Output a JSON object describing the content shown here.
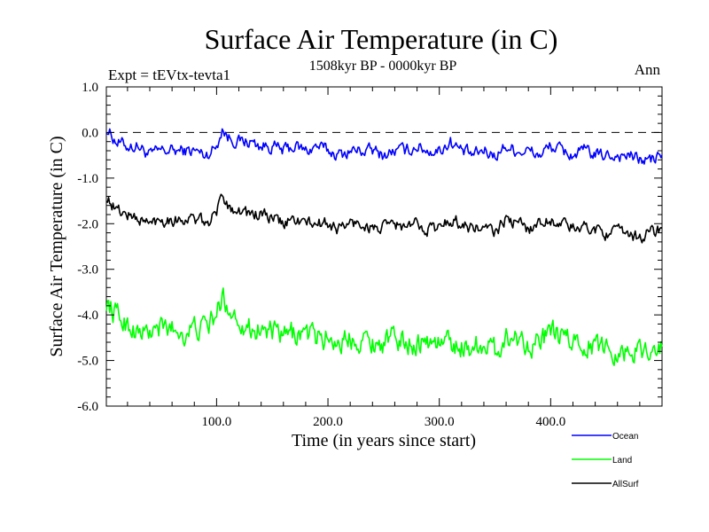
{
  "chart_data": {
    "type": "line",
    "title": "Surface Air Temperature (in C)",
    "subtitle": "1508kyr BP - 0000kyr BP",
    "expt_label": "Expt = tEVtx-tevta1",
    "season_label": "Ann",
    "xlabel": "Time (in years since start)",
    "ylabel": "Surface Air Temperature (in C)",
    "xlim": [
      1,
      500
    ],
    "ylim": [
      -6.0,
      1.0
    ],
    "x_ticks": [
      100,
      200,
      300,
      400
    ],
    "x_tick_labels": [
      "100.0",
      "200.0",
      "300.0",
      "400.0"
    ],
    "y_ticks": [
      1.0,
      0.0,
      -1.0,
      -2.0,
      -3.0,
      -4.0,
      -5.0,
      -6.0
    ],
    "y_tick_labels": [
      "1.0",
      "0.0",
      "-1.0",
      "-2.0",
      "-3.0",
      "-4.0",
      "-5.0",
      "-6.0"
    ],
    "reference_line": 0.0,
    "legend_position": "bottom-right, outside plot",
    "series": [
      {
        "name": "Ocean",
        "color": "#0000ff",
        "x": [
          1,
          10,
          20,
          30,
          40,
          50,
          60,
          70,
          80,
          90,
          100,
          105,
          110,
          120,
          130,
          140,
          150,
          160,
          170,
          180,
          190,
          200,
          210,
          220,
          230,
          240,
          250,
          260,
          270,
          280,
          290,
          300,
          310,
          320,
          330,
          340,
          350,
          360,
          370,
          380,
          390,
          400,
          410,
          420,
          430,
          440,
          450,
          460,
          470,
          480,
          490,
          500
        ],
        "values": [
          0.1,
          -0.2,
          -0.3,
          -0.3,
          -0.5,
          -0.4,
          -0.4,
          -0.4,
          -0.4,
          -0.5,
          -0.3,
          0.1,
          -0.1,
          -0.2,
          -0.2,
          -0.3,
          -0.3,
          -0.4,
          -0.3,
          -0.4,
          -0.3,
          -0.4,
          -0.5,
          -0.4,
          -0.4,
          -0.4,
          -0.5,
          -0.4,
          -0.4,
          -0.3,
          -0.4,
          -0.4,
          -0.2,
          -0.4,
          -0.5,
          -0.4,
          -0.5,
          -0.3,
          -0.4,
          -0.4,
          -0.5,
          -0.3,
          -0.4,
          -0.5,
          -0.4,
          -0.5,
          -0.5,
          -0.5,
          -0.5,
          -0.6,
          -0.6,
          -0.5
        ]
      },
      {
        "name": "Land",
        "color": "#00ff00",
        "x": [
          1,
          10,
          20,
          30,
          40,
          50,
          60,
          70,
          80,
          90,
          100,
          105,
          110,
          120,
          130,
          140,
          150,
          160,
          170,
          180,
          190,
          200,
          210,
          220,
          230,
          240,
          250,
          260,
          270,
          280,
          290,
          300,
          310,
          320,
          330,
          340,
          350,
          360,
          370,
          380,
          390,
          400,
          410,
          420,
          430,
          440,
          450,
          460,
          470,
          480,
          490,
          500
        ],
        "values": [
          -3.7,
          -4.0,
          -4.2,
          -4.4,
          -4.4,
          -4.3,
          -4.3,
          -4.4,
          -4.3,
          -4.3,
          -4.0,
          -3.6,
          -3.8,
          -4.1,
          -4.3,
          -4.3,
          -4.4,
          -4.5,
          -4.4,
          -4.4,
          -4.5,
          -4.5,
          -4.6,
          -4.5,
          -4.5,
          -4.6,
          -4.6,
          -4.5,
          -4.6,
          -4.6,
          -4.6,
          -4.6,
          -4.6,
          -4.7,
          -4.7,
          -4.6,
          -4.8,
          -4.5,
          -4.5,
          -4.6,
          -4.6,
          -4.4,
          -4.5,
          -4.6,
          -4.6,
          -4.7,
          -4.7,
          -4.8,
          -4.8,
          -4.8,
          -4.7,
          -4.7
        ]
      },
      {
        "name": "AllSurf",
        "color": "#000000",
        "x": [
          1,
          10,
          20,
          30,
          40,
          50,
          60,
          70,
          80,
          90,
          100,
          105,
          110,
          120,
          130,
          140,
          150,
          160,
          170,
          180,
          190,
          200,
          210,
          220,
          230,
          240,
          250,
          260,
          270,
          280,
          290,
          300,
          310,
          320,
          330,
          340,
          350,
          360,
          370,
          380,
          390,
          400,
          410,
          420,
          430,
          440,
          450,
          460,
          470,
          480,
          490,
          500
        ],
        "values": [
          -1.4,
          -1.7,
          -1.8,
          -1.9,
          -2.0,
          -1.9,
          -1.9,
          -1.9,
          -1.9,
          -2.0,
          -1.8,
          -1.3,
          -1.6,
          -1.7,
          -1.8,
          -1.8,
          -1.9,
          -2.0,
          -1.9,
          -2.0,
          -2.0,
          -2.0,
          -2.1,
          -2.0,
          -2.0,
          -2.1,
          -2.1,
          -2.0,
          -2.1,
          -2.0,
          -2.1,
          -2.1,
          -1.9,
          -2.0,
          -2.1,
          -2.1,
          -2.2,
          -1.9,
          -2.0,
          -2.1,
          -2.0,
          -1.9,
          -2.0,
          -2.1,
          -2.1,
          -2.1,
          -2.2,
          -2.2,
          -2.2,
          -2.3,
          -2.2,
          -2.1
        ]
      }
    ]
  }
}
